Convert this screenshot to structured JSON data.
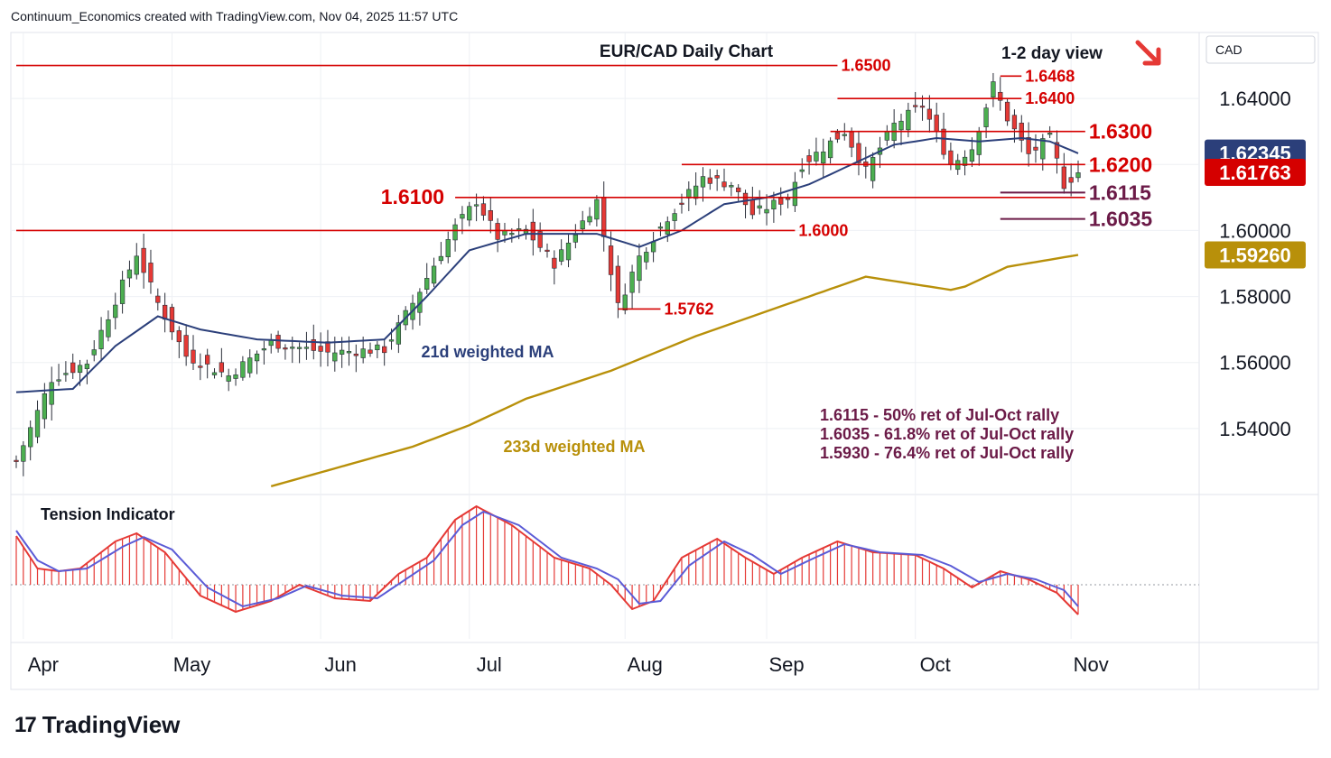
{
  "header": {
    "source_text": "Continuum_Economics created with TradingView.com, Nov 04, 2025 11:57 UTC"
  },
  "brand": {
    "logo_glyph": "17",
    "name": "TradingView"
  },
  "chart_data": {
    "type": "candlestick",
    "title": "EUR/CAD Daily Chart",
    "subtitle": "1-2 day view",
    "currency_label": "CAD",
    "arrow_direction": "down-right",
    "arrow_color": "#e53935",
    "ylim": [
      1.52,
      1.66
    ],
    "y_ticks": [
      {
        "value": 1.64,
        "label": "1.64000"
      },
      {
        "value": 1.62,
        "label": "1.62000"
      },
      {
        "value": 1.6,
        "label": "1.60000"
      },
      {
        "value": 1.58,
        "label": "1.58000"
      },
      {
        "value": 1.56,
        "label": "1.56000"
      },
      {
        "value": 1.54,
        "label": "1.54000"
      }
    ],
    "x_ticks": [
      {
        "label": "Apr",
        "index": 1
      },
      {
        "label": "May",
        "index": 22
      },
      {
        "label": "Jun",
        "index": 43
      },
      {
        "label": "Jul",
        "index": 64
      },
      {
        "label": "Aug",
        "index": 86
      },
      {
        "label": "Sep",
        "index": 106
      },
      {
        "label": "Oct",
        "index": 127
      },
      {
        "label": "Nov",
        "index": 149
      }
    ],
    "price_badges": [
      {
        "value": 1.62345,
        "label": "1.62345",
        "color": "#2b3f7a"
      },
      {
        "value": 1.61763,
        "label": "1.61763",
        "color": "#d50000"
      },
      {
        "value": 1.5926,
        "label": "1.59260",
        "color": "#b8900a"
      }
    ],
    "levels": [
      {
        "value": 1.65,
        "label": "1.6500",
        "start_index": 0,
        "end_index": 116,
        "style": "solid",
        "size": "normal"
      },
      {
        "value": 1.64,
        "label": "1.6400",
        "start_index": 116,
        "end_index": 142,
        "style": "solid",
        "size": "normal"
      },
      {
        "value": 1.63,
        "label": "1.6300",
        "start_index": 115,
        "end_index": 151,
        "style": "solid",
        "size": "large"
      },
      {
        "value": 1.62,
        "label": "1.6200",
        "start_index": 94,
        "end_index": 151,
        "style": "solid",
        "size": "large"
      },
      {
        "value": 1.61,
        "label": "1.6100",
        "start_index": 62,
        "end_index": 151,
        "style": "solid",
        "size": "large",
        "label_side": "left"
      },
      {
        "value": 1.6,
        "label": "1.6000",
        "start_index": 0,
        "end_index": 110,
        "style": "solid",
        "size": "normal"
      },
      {
        "value": 1.6468,
        "label": "1.6468",
        "start_index": 139,
        "end_index": 142,
        "style": "solid",
        "size": "normal"
      },
      {
        "value": 1.5762,
        "label": "1.5762",
        "start_index": 85,
        "end_index": 91,
        "style": "solid",
        "size": "normal"
      },
      {
        "value": 1.6115,
        "label": "1.6115",
        "start_index": 139,
        "end_index": 151,
        "style": "ret",
        "size": "large"
      },
      {
        "value": 1.6035,
        "label": "1.6035",
        "start_index": 139,
        "end_index": 151,
        "style": "ret",
        "size": "large"
      }
    ],
    "annotations": [
      "1.6115 - 50% ret of Jul-Oct rally",
      "1.6035 - 61.8% ret of Jul-Oct rally",
      "1.5930 - 76.4% ret of Jul-Oct rally"
    ],
    "ma_labels": {
      "ma21": "21d weighted MA",
      "ma233": "233d weighted MA"
    },
    "colors": {
      "up": "#4caf50",
      "down": "#e53935",
      "level": "#d50000",
      "ma21": "#2b3f7a",
      "ma233": "#b8900a",
      "ret": "#6b1a47",
      "grid": "#eef0f4",
      "tension_bar": "#e53935",
      "tension_line": "#5b5bd6"
    },
    "candles_anchor_closes": [
      {
        "index": 0,
        "close": 1.53
      },
      {
        "index": 5,
        "close": 1.555
      },
      {
        "index": 10,
        "close": 1.56
      },
      {
        "index": 17,
        "close": 1.593
      },
      {
        "index": 20,
        "close": 1.578
      },
      {
        "index": 24,
        "close": 1.562
      },
      {
        "index": 30,
        "close": 1.556
      },
      {
        "index": 36,
        "close": 1.566
      },
      {
        "index": 44,
        "close": 1.563
      },
      {
        "index": 52,
        "close": 1.564
      },
      {
        "index": 56,
        "close": 1.578
      },
      {
        "index": 62,
        "close": 1.601
      },
      {
        "index": 65,
        "close": 1.609
      },
      {
        "index": 68,
        "close": 1.598
      },
      {
        "index": 72,
        "close": 1.6
      },
      {
        "index": 76,
        "close": 1.59
      },
      {
        "index": 82,
        "close": 1.609
      },
      {
        "index": 85,
        "close": 1.577
      },
      {
        "index": 88,
        "close": 1.592
      },
      {
        "index": 92,
        "close": 1.604
      },
      {
        "index": 97,
        "close": 1.616
      },
      {
        "index": 101,
        "close": 1.614
      },
      {
        "index": 104,
        "close": 1.605
      },
      {
        "index": 109,
        "close": 1.61
      },
      {
        "index": 111,
        "close": 1.62
      },
      {
        "index": 117,
        "close": 1.63
      },
      {
        "index": 120,
        "close": 1.618
      },
      {
        "index": 124,
        "close": 1.632
      },
      {
        "index": 128,
        "close": 1.638
      },
      {
        "index": 132,
        "close": 1.62
      },
      {
        "index": 135,
        "close": 1.625
      },
      {
        "index": 138,
        "close": 1.644
      },
      {
        "index": 140,
        "close": 1.634
      },
      {
        "index": 143,
        "close": 1.623
      },
      {
        "index": 146,
        "close": 1.628
      },
      {
        "index": 148,
        "close": 1.614
      },
      {
        "index": 150,
        "close": 1.6176
      }
    ],
    "ma21_points": [
      {
        "index": 0,
        "value": 1.551
      },
      {
        "index": 8,
        "value": 1.552
      },
      {
        "index": 14,
        "value": 1.565
      },
      {
        "index": 20,
        "value": 1.574
      },
      {
        "index": 26,
        "value": 1.57
      },
      {
        "index": 34,
        "value": 1.567
      },
      {
        "index": 44,
        "value": 1.566
      },
      {
        "index": 52,
        "value": 1.567
      },
      {
        "index": 58,
        "value": 1.58
      },
      {
        "index": 64,
        "value": 1.594
      },
      {
        "index": 72,
        "value": 1.599
      },
      {
        "index": 82,
        "value": 1.599
      },
      {
        "index": 88,
        "value": 1.595
      },
      {
        "index": 94,
        "value": 1.6
      },
      {
        "index": 100,
        "value": 1.608
      },
      {
        "index": 106,
        "value": 1.61
      },
      {
        "index": 112,
        "value": 1.614
      },
      {
        "index": 118,
        "value": 1.62
      },
      {
        "index": 124,
        "value": 1.626
      },
      {
        "index": 130,
        "value": 1.628
      },
      {
        "index": 136,
        "value": 1.627
      },
      {
        "index": 142,
        "value": 1.628
      },
      {
        "index": 146,
        "value": 1.627
      },
      {
        "index": 150,
        "value": 1.6234
      }
    ],
    "ma233_points": [
      {
        "index": 36,
        "value": 1.5225
      },
      {
        "index": 46,
        "value": 1.5285
      },
      {
        "index": 56,
        "value": 1.5345
      },
      {
        "index": 64,
        "value": 1.541
      },
      {
        "index": 72,
        "value": 1.549
      },
      {
        "index": 84,
        "value": 1.5575
      },
      {
        "index": 96,
        "value": 1.568
      },
      {
        "index": 108,
        "value": 1.577
      },
      {
        "index": 120,
        "value": 1.586
      },
      {
        "index": 132,
        "value": 1.582
      },
      {
        "index": 134,
        "value": 1.583
      },
      {
        "index": 140,
        "value": 1.589
      },
      {
        "index": 150,
        "value": 1.5926
      }
    ],
    "tension": {
      "label": "Tension Indicator",
      "ylim": [
        -1.0,
        1.6
      ],
      "bars_anchor": [
        {
          "index": 0,
          "value": 0.9
        },
        {
          "index": 3,
          "value": 0.3
        },
        {
          "index": 6,
          "value": 0.25
        },
        {
          "index": 9,
          "value": 0.3
        },
        {
          "index": 14,
          "value": 0.8
        },
        {
          "index": 17,
          "value": 0.95
        },
        {
          "index": 21,
          "value": 0.6
        },
        {
          "index": 26,
          "value": -0.2
        },
        {
          "index": 31,
          "value": -0.5
        },
        {
          "index": 36,
          "value": -0.3
        },
        {
          "index": 40,
          "value": 0.0
        },
        {
          "index": 45,
          "value": -0.25
        },
        {
          "index": 50,
          "value": -0.3
        },
        {
          "index": 54,
          "value": 0.2
        },
        {
          "index": 58,
          "value": 0.5
        },
        {
          "index": 62,
          "value": 1.2
        },
        {
          "index": 65,
          "value": 1.45
        },
        {
          "index": 70,
          "value": 1.1
        },
        {
          "index": 76,
          "value": 0.5
        },
        {
          "index": 81,
          "value": 0.3
        },
        {
          "index": 84,
          "value": 0.0
        },
        {
          "index": 87,
          "value": -0.45
        },
        {
          "index": 90,
          "value": -0.3
        },
        {
          "index": 94,
          "value": 0.5
        },
        {
          "index": 99,
          "value": 0.85
        },
        {
          "index": 103,
          "value": 0.5
        },
        {
          "index": 107,
          "value": 0.2
        },
        {
          "index": 111,
          "value": 0.5
        },
        {
          "index": 116,
          "value": 0.8
        },
        {
          "index": 121,
          "value": 0.6
        },
        {
          "index": 127,
          "value": 0.55
        },
        {
          "index": 131,
          "value": 0.3
        },
        {
          "index": 135,
          "value": -0.05
        },
        {
          "index": 139,
          "value": 0.25
        },
        {
          "index": 143,
          "value": 0.1
        },
        {
          "index": 147,
          "value": -0.15
        },
        {
          "index": 150,
          "value": -0.55
        }
      ],
      "line_anchor": [
        {
          "index": 0,
          "value": 1.0
        },
        {
          "index": 3,
          "value": 0.45
        },
        {
          "index": 6,
          "value": 0.25
        },
        {
          "index": 10,
          "value": 0.3
        },
        {
          "index": 15,
          "value": 0.7
        },
        {
          "index": 18,
          "value": 0.88
        },
        {
          "index": 22,
          "value": 0.65
        },
        {
          "index": 27,
          "value": -0.05
        },
        {
          "index": 32,
          "value": -0.4
        },
        {
          "index": 37,
          "value": -0.25
        },
        {
          "index": 41,
          "value": -0.02
        },
        {
          "index": 46,
          "value": -0.2
        },
        {
          "index": 51,
          "value": -0.25
        },
        {
          "index": 55,
          "value": 0.1
        },
        {
          "index": 59,
          "value": 0.45
        },
        {
          "index": 63,
          "value": 1.1
        },
        {
          "index": 66,
          "value": 1.35
        },
        {
          "index": 71,
          "value": 1.1
        },
        {
          "index": 77,
          "value": 0.5
        },
        {
          "index": 82,
          "value": 0.3
        },
        {
          "index": 85,
          "value": 0.1
        },
        {
          "index": 88,
          "value": -0.35
        },
        {
          "index": 91,
          "value": -0.3
        },
        {
          "index": 95,
          "value": 0.35
        },
        {
          "index": 100,
          "value": 0.8
        },
        {
          "index": 104,
          "value": 0.55
        },
        {
          "index": 108,
          "value": 0.2
        },
        {
          "index": 112,
          "value": 0.45
        },
        {
          "index": 117,
          "value": 0.75
        },
        {
          "index": 122,
          "value": 0.6
        },
        {
          "index": 128,
          "value": 0.55
        },
        {
          "index": 132,
          "value": 0.35
        },
        {
          "index": 136,
          "value": 0.05
        },
        {
          "index": 140,
          "value": 0.2
        },
        {
          "index": 144,
          "value": 0.1
        },
        {
          "index": 148,
          "value": -0.1
        },
        {
          "index": 150,
          "value": -0.4
        }
      ]
    }
  }
}
